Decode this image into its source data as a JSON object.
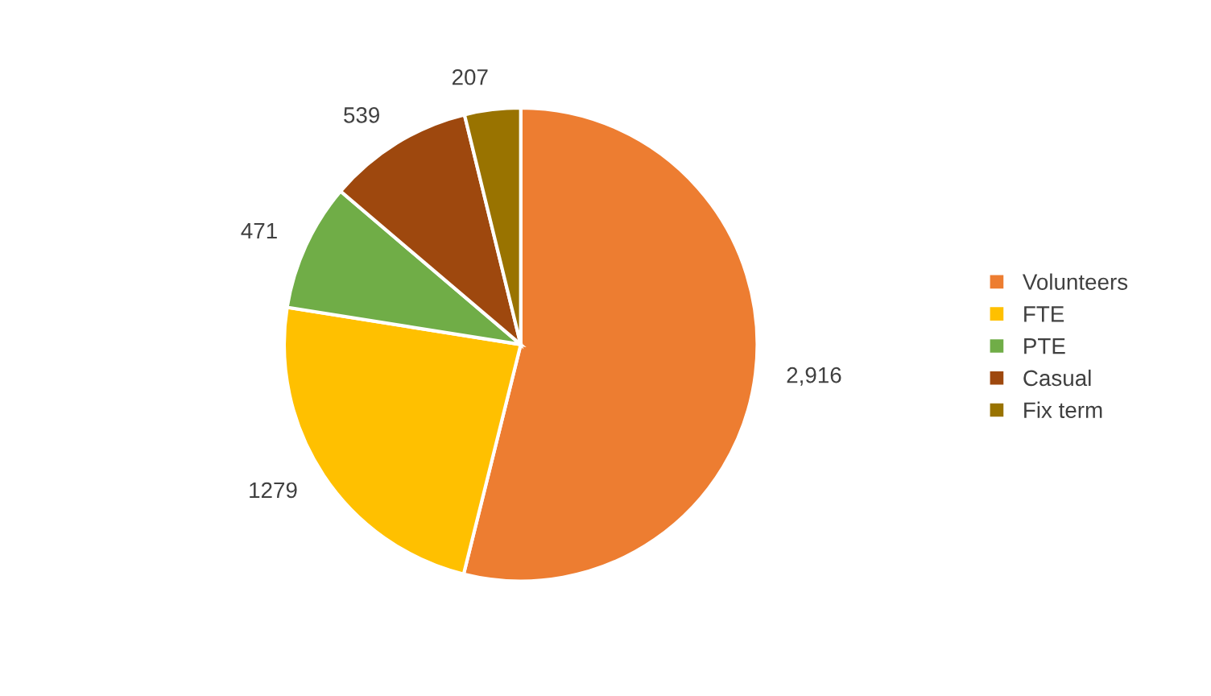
{
  "chart_data": {
    "type": "pie",
    "categories": [
      "Volunteers",
      "FTE",
      "PTE",
      "Casual",
      "Fix term"
    ],
    "values": [
      2916,
      1279,
      471,
      539,
      207
    ],
    "value_labels": [
      "2,916",
      "1279",
      "471",
      "539",
      "207"
    ],
    "colors": [
      "#ed7d31",
      "#ffc000",
      "#70ad47",
      "#9e480e",
      "#997300"
    ],
    "legend": "right"
  }
}
